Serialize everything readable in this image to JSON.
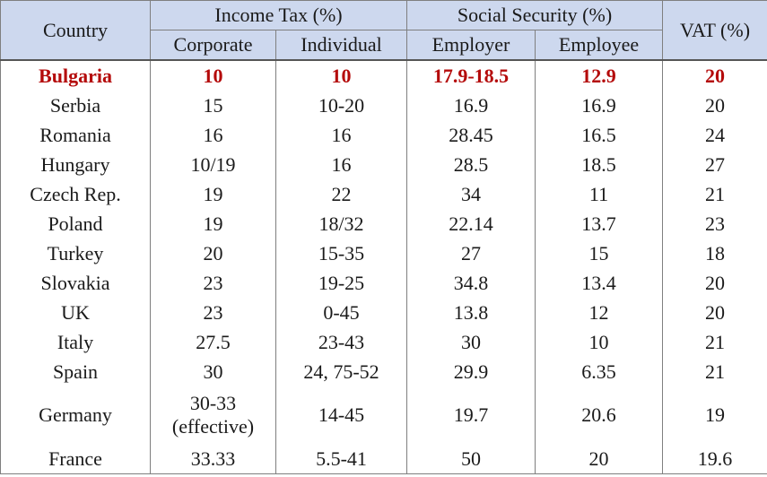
{
  "header": {
    "country": "Country",
    "income_tax": "Income Tax (%)",
    "social_security": "Social Security (%)",
    "vat": "VAT (%)",
    "corporate": "Corporate",
    "individual": "Individual",
    "employer": "Employer",
    "employee": "Employee"
  },
  "highlight_color": "#b40a0a",
  "header_bg": "#cdd8ee",
  "rows": [
    {
      "country": "Bulgaria",
      "corporate": "10",
      "corporate_note": "",
      "individual": "10",
      "employer": "17.9-18.5",
      "employee": "12.9",
      "vat": "20"
    },
    {
      "country": "Serbia",
      "corporate": "15",
      "corporate_note": "",
      "individual": "10-20",
      "employer": "16.9",
      "employee": "16.9",
      "vat": "20"
    },
    {
      "country": "Romania",
      "corporate": "16",
      "corporate_note": "",
      "individual": "16",
      "employer": "28.45",
      "employee": "16.5",
      "vat": "24"
    },
    {
      "country": "Hungary",
      "corporate": "10/19",
      "corporate_note": "",
      "individual": "16",
      "employer": "28.5",
      "employee": "18.5",
      "vat": "27"
    },
    {
      "country": "Czech Rep.",
      "corporate": "19",
      "corporate_note": "",
      "individual": "22",
      "employer": "34",
      "employee": "11",
      "vat": "21"
    },
    {
      "country": "Poland",
      "corporate": "19",
      "corporate_note": "",
      "individual": "18/32",
      "employer": "22.14",
      "employee": "13.7",
      "vat": "23"
    },
    {
      "country": "Turkey",
      "corporate": "20",
      "corporate_note": "",
      "individual": "15-35",
      "employer": "27",
      "employee": "15",
      "vat": "18"
    },
    {
      "country": "Slovakia",
      "corporate": "23",
      "corporate_note": "",
      "individual": "19-25",
      "employer": "34.8",
      "employee": "13.4",
      "vat": "20"
    },
    {
      "country": "UK",
      "corporate": "23",
      "corporate_note": "",
      "individual": "0-45",
      "employer": "13.8",
      "employee": "12",
      "vat": "20"
    },
    {
      "country": "Italy",
      "corporate": "27.5",
      "corporate_note": "",
      "individual": "23-43",
      "employer": "30",
      "employee": "10",
      "vat": "21"
    },
    {
      "country": "Spain",
      "corporate": "30",
      "corporate_note": "",
      "individual": "24, 75-52",
      "employer": "29.9",
      "employee": "6.35",
      "vat": "21"
    },
    {
      "country": "Germany",
      "corporate": "30-33",
      "corporate_note": "(effective)",
      "individual": "14-45",
      "employer": "19.7",
      "employee": "20.6",
      "vat": "19"
    },
    {
      "country": "France",
      "corporate": "33.33",
      "corporate_note": "",
      "individual": "5.5-41",
      "employer": "50",
      "employee": "20",
      "vat": "19.6"
    }
  ]
}
